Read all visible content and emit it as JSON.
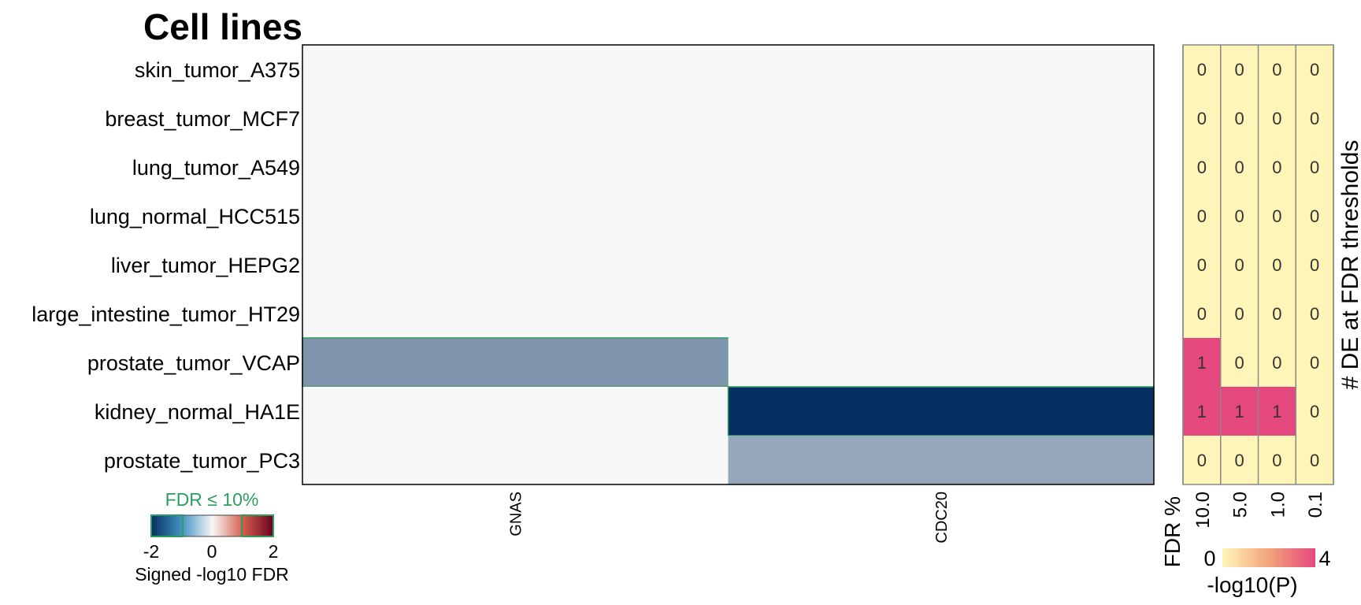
{
  "chart_data": [
    {
      "type": "heatmap",
      "title": "Cell lines",
      "rows": [
        "skin_tumor_A375",
        "breast_tumor_MCF7",
        "lung_tumor_A549",
        "lung_normal_HCC515",
        "liver_tumor_HEPG2",
        "large_intestine_tumor_HT29",
        "prostate_tumor_VCAP",
        "kidney_normal_HA1E",
        "prostate_tumor_PC3"
      ],
      "columns": [
        "GNAS",
        "CDC20"
      ],
      "values": [
        [
          0,
          0
        ],
        [
          0,
          0
        ],
        [
          0,
          0
        ],
        [
          0,
          0
        ],
        [
          0,
          0
        ],
        [
          0,
          0
        ],
        [
          -1.0,
          0
        ],
        [
          0,
          -2.0
        ],
        [
          0,
          -0.8
        ]
      ],
      "significant": [
        [
          false,
          false
        ],
        [
          false,
          false
        ],
        [
          false,
          false
        ],
        [
          false,
          false
        ],
        [
          false,
          false
        ],
        [
          false,
          false
        ],
        [
          true,
          false
        ],
        [
          false,
          true
        ],
        [
          false,
          false
        ]
      ],
      "legend": {
        "title": "Signed -log10 FDR",
        "label": "FDR ≤ 10%",
        "ticks": [
          "-2",
          "0",
          "2"
        ],
        "range": [
          -2,
          2
        ],
        "colors": {
          "low": "#053061",
          "mid": "#f7f7f7",
          "high": "#67001f",
          "highlight": "#2e9e5e"
        }
      }
    },
    {
      "type": "heatmap",
      "ylabel": "# DE at FDR thresholds",
      "xlabel": "FDR %",
      "columns": [
        "10.0",
        "5.0",
        "1.0",
        "0.1"
      ],
      "counts": [
        [
          "0",
          "0",
          "0",
          "0"
        ],
        [
          "0",
          "0",
          "0",
          "0"
        ],
        [
          "0",
          "0",
          "0",
          "0"
        ],
        [
          "0",
          "0",
          "0",
          "0"
        ],
        [
          "0",
          "0",
          "0",
          "0"
        ],
        [
          "0",
          "0",
          "0",
          "0"
        ],
        [
          "1",
          "0",
          "0",
          "0"
        ],
        [
          "1",
          "1",
          "1",
          "0"
        ],
        [
          "0",
          "0",
          "0",
          "0"
        ]
      ],
      "neglog10p": [
        [
          0,
          0,
          0,
          0
        ],
        [
          0,
          0,
          0,
          0
        ],
        [
          0,
          0,
          0,
          0
        ],
        [
          0,
          0,
          0,
          0
        ],
        [
          0,
          0,
          0,
          0
        ],
        [
          0,
          0,
          0,
          0
        ],
        [
          4,
          0,
          0,
          0
        ],
        [
          4,
          4,
          4,
          0
        ],
        [
          0,
          0,
          0,
          0
        ]
      ],
      "legend": {
        "title": "-log10(P)",
        "ticks": [
          "0",
          "4"
        ],
        "range": [
          0,
          4
        ],
        "colors": {
          "low": "#fff5b8",
          "high": "#e5487e"
        }
      }
    }
  ]
}
